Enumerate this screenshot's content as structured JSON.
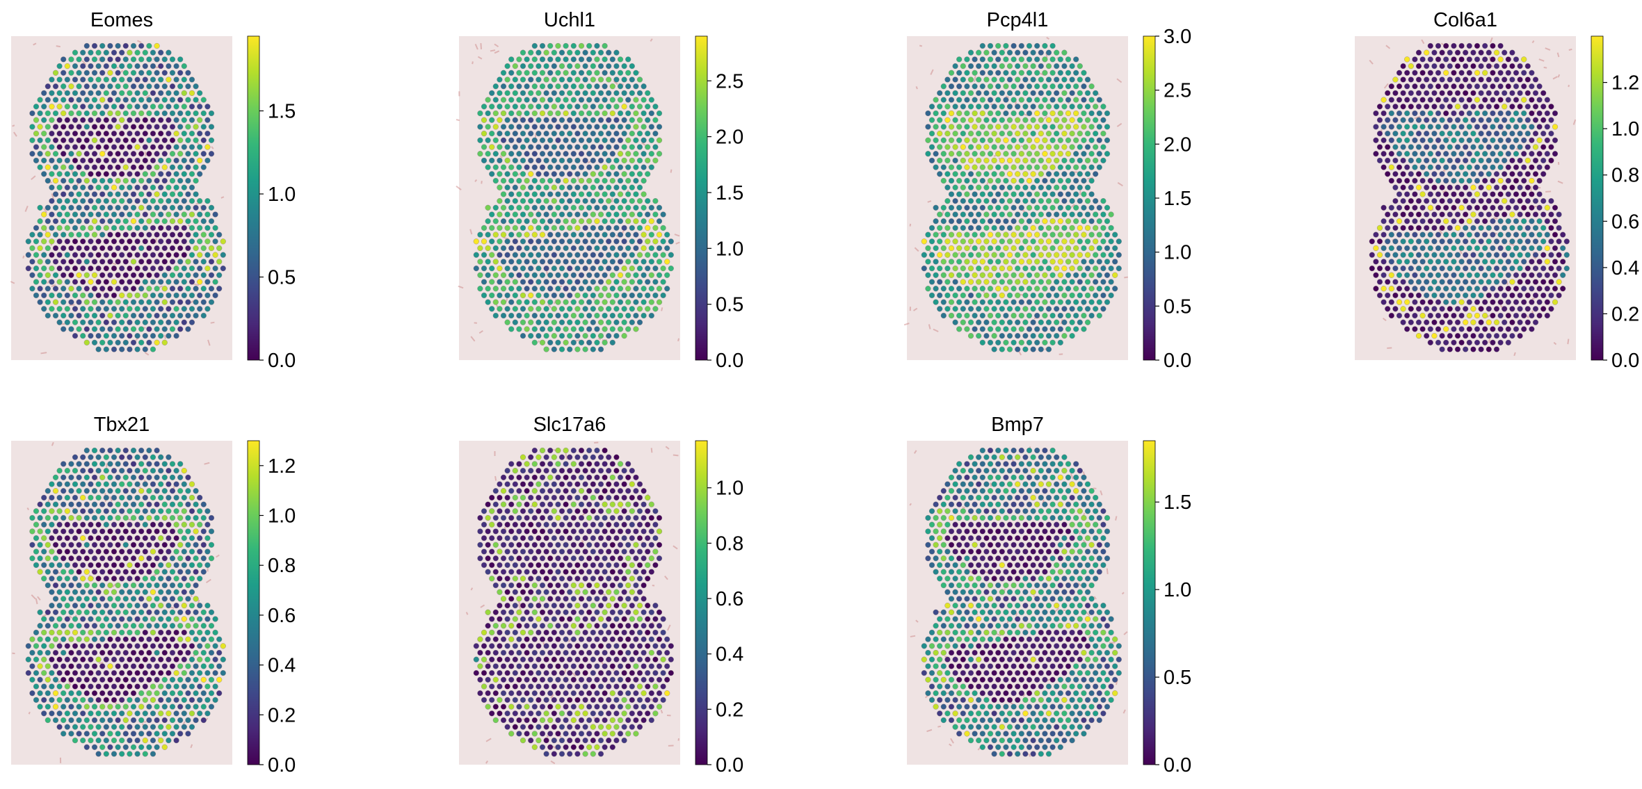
{
  "figure": {
    "colormap": "viridis",
    "colormap_stops": [
      "#440154",
      "#482878",
      "#3e4989",
      "#31688e",
      "#26828e",
      "#1f9e89",
      "#35b779",
      "#6ece58",
      "#b5de2b",
      "#fde725"
    ],
    "tissue_background_color": "#efe3e3",
    "spot_outline_color": "#8a7d87"
  },
  "chart_data": [
    {
      "type": "scatter",
      "title": "Eomes",
      "zmin": 0,
      "zmax": 1.95,
      "ticks": [
        0.0,
        0.5,
        1.0,
        1.5
      ],
      "tick_labels": [
        "0.0",
        "0.5",
        "1.0",
        "1.5"
      ],
      "pattern": "border"
    },
    {
      "type": "scatter",
      "title": "Uchl1",
      "zmin": 0,
      "zmax": 2.9,
      "ticks": [
        0.0,
        0.5,
        1.0,
        1.5,
        2.0,
        2.5
      ],
      "tick_labels": [
        "0.0",
        "0.5",
        "1.0",
        "1.5",
        "2.0",
        "2.5"
      ],
      "pattern": "high"
    },
    {
      "type": "scatter",
      "title": "Pcp4l1",
      "zmin": 0,
      "zmax": 3.0,
      "ticks": [
        0.0,
        0.5,
        1.0,
        1.5,
        2.0,
        2.5,
        3.0
      ],
      "tick_labels": [
        "0.0",
        "0.5",
        "1.0",
        "1.5",
        "2.0",
        "2.5",
        "3.0"
      ],
      "pattern": "lobe-high"
    },
    {
      "type": "scatter",
      "title": "Col6a1",
      "zmin": 0,
      "zmax": 1.4,
      "ticks": [
        0.0,
        0.2,
        0.4,
        0.6,
        0.8,
        1.0,
        1.2
      ],
      "tick_labels": [
        "0.0",
        "0.2",
        "0.4",
        "0.6",
        "0.8",
        "1.0",
        "1.2"
      ],
      "pattern": "lobe-mid"
    },
    {
      "type": "scatter",
      "title": "Tbx21",
      "zmin": 0,
      "zmax": 1.3,
      "ticks": [
        0.0,
        0.2,
        0.4,
        0.6,
        0.8,
        1.0,
        1.2
      ],
      "tick_labels": [
        "0.0",
        "0.2",
        "0.4",
        "0.6",
        "0.8",
        "1.0",
        "1.2"
      ],
      "pattern": "border"
    },
    {
      "type": "scatter",
      "title": "Slc17a6",
      "zmin": 0,
      "zmax": 1.17,
      "ticks": [
        0.0,
        0.2,
        0.4,
        0.6,
        0.8,
        1.0
      ],
      "tick_labels": [
        "0.0",
        "0.2",
        "0.4",
        "0.6",
        "0.8",
        "1.0"
      ],
      "pattern": "sparse"
    },
    {
      "type": "scatter",
      "title": "Bmp7",
      "zmin": 0,
      "zmax": 1.85,
      "ticks": [
        0.0,
        0.5,
        1.0,
        1.5
      ],
      "tick_labels": [
        "0.0",
        "0.5",
        "1.0",
        "1.5"
      ],
      "pattern": "border"
    }
  ]
}
